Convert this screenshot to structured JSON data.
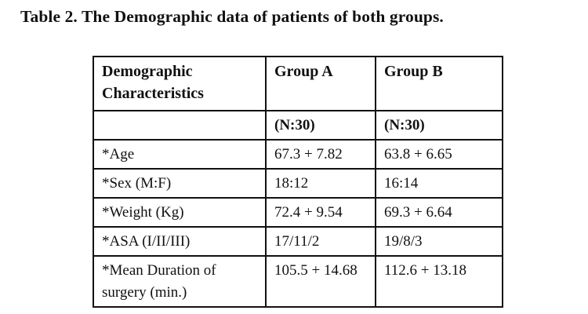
{
  "caption": "Table 2. The Demographic data of patients of both groups.",
  "table": {
    "header": {
      "col1": "Demographic Characteristics",
      "col2": "Group A",
      "col3": "Group B"
    },
    "subheader": {
      "col1": "",
      "col2": "(N:30)",
      "col3": "(N:30)"
    },
    "rows": [
      {
        "label": "*Age",
        "group_a": "67.3 + 7.82",
        "group_b": "63.8 + 6.65"
      },
      {
        "label": "*Sex (M:F)",
        "group_a": "18:12",
        "group_b": "16:14"
      },
      {
        "label": "*Weight (Kg)",
        "group_a": "72.4 + 9.54",
        "group_b": "69.3 + 6.64"
      },
      {
        "label": "*ASA (I/II/III)",
        "group_a": "17/11/2",
        "group_b": "19/8/3"
      },
      {
        "label": "*Mean Duration of surgery (min.)",
        "group_a": "105.5 + 14.68",
        "group_b": "112.6 + 13.18"
      }
    ]
  }
}
